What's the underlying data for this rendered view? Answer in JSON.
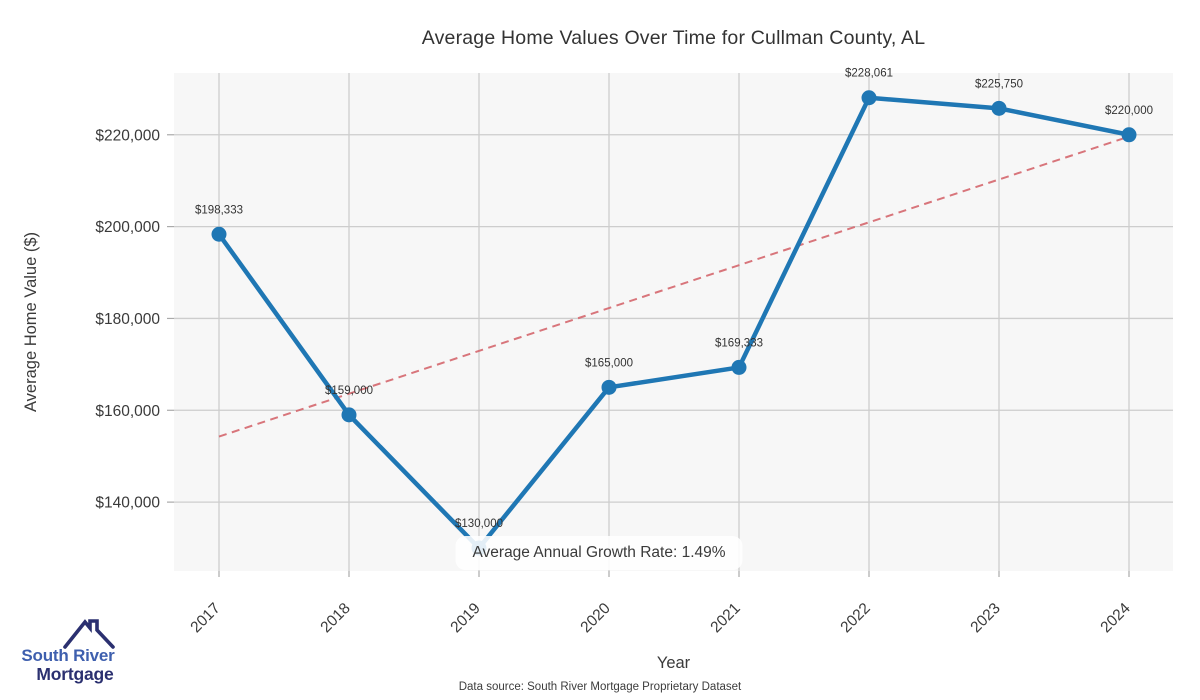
{
  "title": "Average Home Values Over Time for Cullman County, AL",
  "chart_data": {
    "type": "line",
    "title": "Average Home Values Over Time for Cullman County, AL",
    "xlabel": "Year",
    "ylabel": "Average Home Value ($)",
    "x": [
      2017,
      2018,
      2019,
      2020,
      2021,
      2022,
      2023,
      2024
    ],
    "x_tick_labels": [
      "2017",
      "2018",
      "2019",
      "2020",
      "2021",
      "2022",
      "2023",
      "2024"
    ],
    "series": [
      {
        "name": "Average Home Value",
        "color": "#1f77b4",
        "values": [
          198333,
          159000,
          130000,
          165000,
          169333,
          228061,
          225750,
          220000
        ],
        "point_labels": [
          "$198,333",
          "$159,000",
          "$130,000",
          "$165,000",
          "$169,333",
          "$228,061",
          "$225,750",
          "$220,000"
        ]
      }
    ],
    "trend_line": {
      "style": "dashed",
      "color": "#d5686e",
      "start": {
        "x": 2017,
        "value": 154270
      },
      "end": {
        "x": 2024,
        "value": 219599
      }
    },
    "yticks": [
      140000,
      160000,
      180000,
      200000,
      220000
    ],
    "ytick_labels": [
      "$140,000",
      "$160,000",
      "$180,000",
      "$200,000",
      "$220,000"
    ],
    "ylim": [
      125000,
      233450
    ],
    "grid": true,
    "legend": "none",
    "plot_bg": "#f7f7f7",
    "grid_color": "#cdcdcd",
    "tick_color": "#aaaaaa",
    "annotation": "Average Annual Growth Rate: 1.49%"
  },
  "footer": {
    "source_note": "Data source: South River Mortgage Proprietary Dataset"
  },
  "logo": {
    "line1": "South River",
    "line2": "Mortgage",
    "blue": "#3e5fae",
    "navy": "#2b3070"
  }
}
